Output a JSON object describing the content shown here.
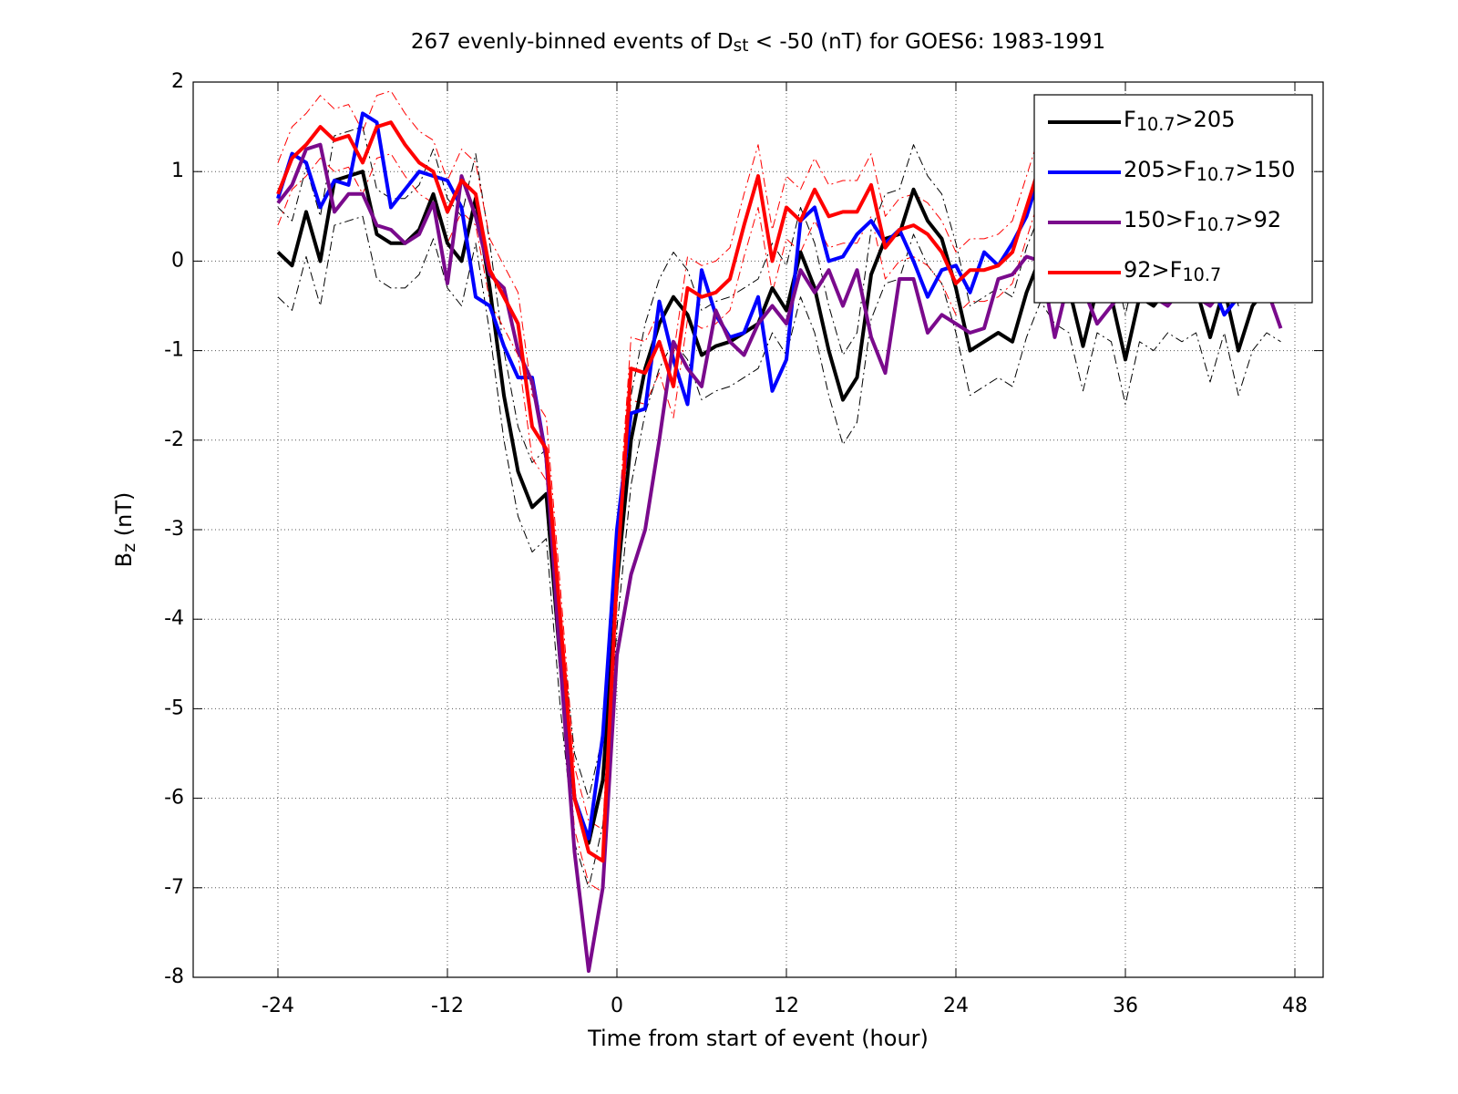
{
  "chart_data": {
    "type": "line",
    "title": [
      "267 evenly-binned events of D",
      "st",
      " < -50 (nT) for GOES6: 1983-1991"
    ],
    "xlabel": [
      "Time from start of event (hour)"
    ],
    "ylabel": [
      "B",
      "z",
      " (nT)"
    ],
    "x": [
      -24,
      -23,
      -22,
      -21,
      -20,
      -19,
      -18,
      -17,
      -16,
      -15,
      -14,
      -13,
      -12,
      -11,
      -10,
      -9,
      -8,
      -7,
      -6,
      -5,
      -4,
      -3,
      -2,
      -1,
      0,
      1,
      2,
      3,
      4,
      5,
      6,
      7,
      8,
      9,
      10,
      11,
      12,
      13,
      14,
      15,
      16,
      17,
      18,
      19,
      20,
      21,
      22,
      23,
      24,
      25,
      26,
      27,
      28,
      29,
      30,
      31,
      32,
      33,
      34,
      35,
      36,
      37,
      38,
      39,
      40,
      41,
      42,
      43,
      44,
      45,
      46,
      47
    ],
    "xlim": [
      -30,
      50
    ],
    "xticks": [
      -24,
      -12,
      0,
      12,
      24,
      36,
      48
    ],
    "ylim": [
      -8,
      2
    ],
    "yticks": [
      -8,
      -7,
      -6,
      -5,
      -4,
      -3,
      -2,
      -1,
      0,
      1,
      2
    ],
    "grid": true,
    "legend": "northeast",
    "bands": [
      {
        "color": "#000000",
        "upper": [
          0.6,
          0.45,
          1.05,
          0.5,
          1.4,
          1.45,
          1.5,
          0.8,
          0.7,
          0.7,
          0.85,
          1.25,
          0.7,
          0.5,
          1.2,
          0.2,
          -1.0,
          -1.85,
          -2.25,
          -2.1,
          -4.0,
          -5.5,
          -6.0,
          -5.3,
          -3.1,
          -1.5,
          -0.7,
          -0.2,
          0.1,
          -0.1,
          -0.55,
          -0.45,
          -0.4,
          -0.3,
          -0.2,
          0.2,
          -0.05,
          0.6,
          0.2,
          -0.5,
          -1.05,
          -0.8,
          0.35,
          0.75,
          0.8,
          1.3,
          0.95,
          0.75,
          0.2,
          -0.5,
          -0.4,
          -0.3,
          -0.4,
          0.15,
          0.55,
          0.3,
          0.2,
          -0.45,
          0.2,
          0.1,
          -0.6,
          0.1,
          0,
          0.2,
          0.1,
          0.2,
          -0.35,
          0.2,
          -0.5,
          0,
          0.2,
          0.1
        ],
        "lower": [
          -0.4,
          -0.55,
          0.05,
          -0.5,
          0.4,
          0.45,
          0.5,
          -0.2,
          -0.3,
          -0.3,
          -0.15,
          0.25,
          -0.3,
          -0.5,
          0.2,
          -0.8,
          -2.0,
          -2.85,
          -3.25,
          -3.1,
          -5.0,
          -6.5,
          -7.0,
          -6.3,
          -4.1,
          -2.5,
          -1.7,
          -1.2,
          -0.9,
          -1.1,
          -1.55,
          -1.45,
          -1.4,
          -1.3,
          -1.2,
          -0.8,
          -1.05,
          -0.4,
          -0.8,
          -1.5,
          -2.05,
          -1.8,
          -0.65,
          -0.25,
          -0.2,
          0.3,
          -0.05,
          -0.25,
          -0.8,
          -1.5,
          -1.4,
          -1.3,
          -1.4,
          -0.85,
          -0.45,
          -0.7,
          -0.8,
          -1.45,
          -0.8,
          -0.9,
          -1.6,
          -0.9,
          -1.0,
          -0.8,
          -0.9,
          -0.8,
          -1.35,
          -0.8,
          -1.5,
          -1.0,
          -0.8,
          -0.9
        ]
      },
      {
        "color": "#ff0000",
        "upper": [
          1.1,
          1.5,
          1.65,
          1.85,
          1.7,
          1.75,
          1.45,
          1.85,
          1.9,
          1.65,
          1.45,
          1.35,
          0.9,
          1.25,
          1.1,
          0.25,
          -0.05,
          -0.35,
          -1.5,
          -1.75,
          -3.65,
          -5.65,
          -6.25,
          -6.35,
          -3.15,
          -0.85,
          -0.9,
          -0.55,
          -1.05,
          0.05,
          -0.05,
          0,
          0.15,
          0.75,
          1.3,
          0.35,
          0.95,
          0.8,
          1.15,
          0.85,
          0.9,
          0.9,
          1.2,
          0.5,
          0.7,
          0.75,
          0.65,
          0.45,
          0.1,
          0.25,
          0.25,
          0.3,
          0.45,
          0.95,
          1.45,
          1.55,
          1.35,
          1.25,
          1.35,
          1.15,
          1.25,
          1.05,
          1.15,
          1.25,
          1.05,
          1.15,
          0.95,
          1.05,
          1.15,
          0.95,
          1.05,
          1.15
        ],
        "lower": [
          0.4,
          0.8,
          0.95,
          1.15,
          1.0,
          1.05,
          0.75,
          1.15,
          1.2,
          0.95,
          0.75,
          0.65,
          0.2,
          0.55,
          0.4,
          -0.45,
          -0.75,
          -1.05,
          -2.2,
          -2.45,
          -4.35,
          -6.35,
          -6.95,
          -7.05,
          -3.85,
          -1.55,
          -1.6,
          -1.25,
          -1.75,
          -0.65,
          -0.75,
          -0.7,
          -0.55,
          0.05,
          0.6,
          -0.35,
          0.25,
          0.1,
          0.45,
          0.15,
          0.2,
          0.2,
          0.5,
          -0.2,
          0,
          0.05,
          -0.05,
          -0.25,
          -0.6,
          -0.45,
          -0.45,
          -0.4,
          -0.25,
          0.25,
          0.75,
          0.85,
          0.65,
          0.55,
          0.65,
          0.45,
          0.55,
          0.35,
          0.45,
          0.55,
          0.35,
          0.45,
          0.25,
          0.35,
          0.45,
          0.25,
          0.35,
          0.45
        ]
      }
    ],
    "series": [
      {
        "name": [
          "F",
          "10.7",
          ">205"
        ],
        "color": "#000000",
        "values": [
          0.1,
          -0.05,
          0.55,
          0,
          0.9,
          0.95,
          1.0,
          0.3,
          0.2,
          0.2,
          0.35,
          0.75,
          0.2,
          0,
          0.7,
          -0.3,
          -1.5,
          -2.35,
          -2.75,
          -2.6,
          -4.5,
          -6.0,
          -6.5,
          -5.8,
          -3.6,
          -2.0,
          -1.2,
          -0.7,
          -0.4,
          -0.6,
          -1.05,
          -0.95,
          -0.9,
          -0.8,
          -0.7,
          -0.3,
          -0.55,
          0.1,
          -0.3,
          -1.0,
          -1.55,
          -1.3,
          -0.15,
          0.25,
          0.3,
          0.8,
          0.45,
          0.25,
          -0.3,
          -1.0,
          -0.9,
          -0.8,
          -0.9,
          -0.35,
          0.05,
          -0.2,
          -0.3,
          -0.95,
          -0.3,
          -0.4,
          -1.1,
          -0.4,
          -0.5,
          -0.3,
          -0.4,
          -0.3,
          -0.85,
          -0.3,
          -1.0,
          -0.5,
          -0.3,
          -0.4
        ]
      },
      {
        "name": [
          "205>F",
          "10.7",
          ">150"
        ],
        "color": "#0000ff",
        "values": [
          0.7,
          1.2,
          1.1,
          0.6,
          0.9,
          0.85,
          1.65,
          1.55,
          0.6,
          0.8,
          1.0,
          0.95,
          0.9,
          0.6,
          -0.4,
          -0.5,
          -0.95,
          -1.3,
          -1.3,
          -2.2,
          -4.2,
          -6.0,
          -6.45,
          -5.3,
          -3.0,
          -1.7,
          -1.65,
          -0.45,
          -1.1,
          -1.6,
          -0.1,
          -0.6,
          -0.85,
          -0.8,
          -0.4,
          -1.45,
          -1.1,
          0.45,
          0.6,
          0.0,
          0.05,
          0.3,
          0.45,
          0.2,
          0.35,
          0.0,
          -0.4,
          -0.1,
          -0.05,
          -0.35,
          0.1,
          -0.05,
          0.2,
          0.5,
          1.0,
          0.5,
          0.3,
          0.2,
          0.1,
          0.0,
          -0.1,
          0.0,
          -0.1,
          0.0,
          0.1,
          0.0,
          -0.2,
          -0.6,
          -0.4,
          -0.2,
          -0.3,
          -0.3
        ]
      },
      {
        "name": [
          "150>F",
          "10.7",
          ">92"
        ],
        "color": "#7a0a8c",
        "values": [
          0.65,
          0.85,
          1.25,
          1.3,
          0.55,
          0.75,
          0.75,
          0.4,
          0.35,
          0.2,
          0.3,
          0.65,
          -0.25,
          0.95,
          0.5,
          -0.15,
          -0.3,
          -1.0,
          -1.35,
          -2.2,
          -4.5,
          -6.6,
          -7.93,
          -7.0,
          -4.4,
          -3.5,
          -3.0,
          -2.0,
          -0.9,
          -1.2,
          -1.4,
          -0.55,
          -0.9,
          -1.05,
          -0.7,
          -0.5,
          -0.7,
          -0.1,
          -0.35,
          -0.1,
          -0.5,
          -0.1,
          -0.85,
          -1.25,
          -0.2,
          -0.2,
          -0.8,
          -0.6,
          -0.7,
          -0.8,
          -0.75,
          -0.2,
          -0.15,
          0.05,
          0.0,
          -0.85,
          -0.2,
          -0.3,
          -0.7,
          -0.5,
          -0.3,
          -0.4,
          -0.4,
          -0.5,
          -0.3,
          -0.4,
          -0.5,
          -0.3,
          -0.4,
          -0.2,
          -0.3,
          -0.75
        ]
      },
      {
        "name": [
          "92>F",
          "10.7"
        ],
        "color": "#ff0000",
        "values": [
          0.75,
          1.15,
          1.3,
          1.5,
          1.35,
          1.4,
          1.1,
          1.5,
          1.55,
          1.3,
          1.1,
          1.0,
          0.55,
          0.9,
          0.75,
          -0.1,
          -0.4,
          -0.7,
          -1.85,
          -2.1,
          -4.0,
          -6.0,
          -6.6,
          -6.7,
          -3.5,
          -1.2,
          -1.25,
          -0.9,
          -1.4,
          -0.3,
          -0.4,
          -0.35,
          -0.2,
          0.4,
          0.95,
          0.0,
          0.6,
          0.45,
          0.8,
          0.5,
          0.55,
          0.55,
          0.85,
          0.15,
          0.35,
          0.4,
          0.3,
          0.1,
          -0.25,
          -0.1,
          -0.1,
          -0.05,
          0.1,
          0.6,
          1.1,
          1.2,
          1.0,
          0.9,
          1.0,
          0.8,
          0.9,
          0.7,
          0.8,
          0.9,
          0.7,
          0.8,
          0.6,
          0.7,
          0.8,
          0.6,
          0.7,
          0.8
        ]
      }
    ]
  }
}
